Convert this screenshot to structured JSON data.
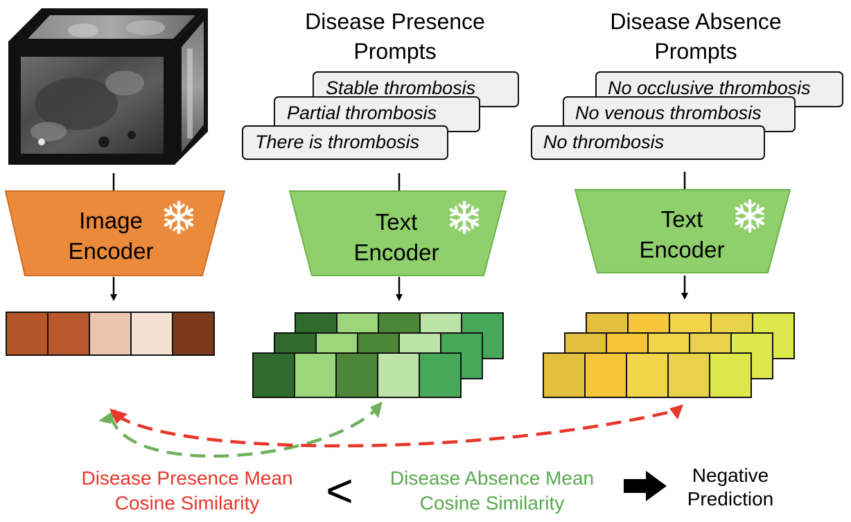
{
  "headers": {
    "presence": [
      "Disease Presence",
      "Prompts"
    ],
    "absence": [
      "Disease Absence",
      "Prompts"
    ]
  },
  "presence_prompts": [
    "Stable thrombosis",
    "Partial thrombosis",
    "There is thrombosis"
  ],
  "absence_prompts": [
    "No occlusive thrombosis",
    "No venous thrombosis",
    "No thrombosis"
  ],
  "encoders": {
    "image": [
      "Image",
      "Encoder"
    ],
    "text_presence": [
      "Text",
      "Encoder"
    ],
    "text_absence": [
      "Text",
      "Encoder"
    ]
  },
  "colors": {
    "image_encoder": "#ea8a3a",
    "text_encoder": "#8fcf6c",
    "red": "#e8362a",
    "green": "#6fb15f"
  },
  "image_embedding_colors": [
    "#b5562a",
    "#b8582c",
    "#ebc6ae",
    "#f4e1d4",
    "#7b3a1b"
  ],
  "presence_embedding_colors": [
    "#2f6b2c",
    "#9cd57b",
    "#4c8636",
    "#bde3a9",
    "#48a85a"
  ],
  "absence_embedding_colors": [
    "#e2bf3c",
    "#f6c63a",
    "#f2d54a",
    "#e8d24a",
    "#dde84c"
  ],
  "bottom": {
    "presence_label": [
      "Disease Presence Mean",
      "Cosine Similarity"
    ],
    "comparator": "<",
    "absence_label": [
      "Disease Absence Mean",
      "Cosine Similarity"
    ],
    "result": [
      "Negative",
      "Prediction"
    ]
  }
}
